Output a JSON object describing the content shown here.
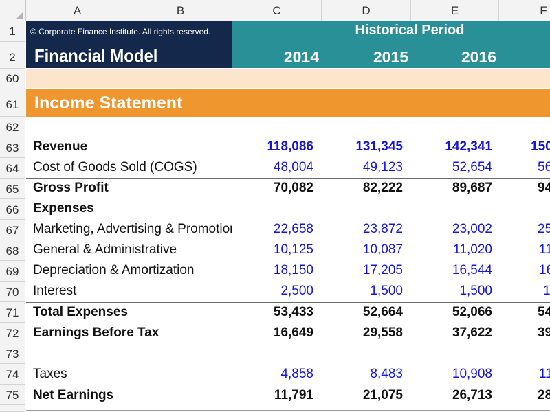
{
  "columns": [
    "A",
    "B",
    "C",
    "D",
    "E",
    "F"
  ],
  "rows_numbers": [
    "1",
    "2",
    "60",
    "61",
    "62",
    "63",
    "64",
    "65",
    "66",
    "67",
    "68",
    "69",
    "70",
    "71",
    "72",
    "73",
    "74",
    "75"
  ],
  "header": {
    "copyright": "© Corporate Finance Institute. All rights reserved.",
    "model_title": "Financial Model",
    "period_title": "Historical Period",
    "years": [
      "2014",
      "2015",
      "2016"
    ]
  },
  "section": {
    "title": "Income Statement"
  },
  "lines": [
    {
      "row": "63",
      "label": "Revenue",
      "bold": true,
      "style": "blue-bold",
      "values": [
        "118,086",
        "131,345",
        "142,341"
      ],
      "partial": "150"
    },
    {
      "row": "64",
      "label": "Cost of Goods Sold (COGS)",
      "bold": false,
      "style": "blue",
      "values": [
        "48,004",
        "49,123",
        "52,654"
      ],
      "partial": "56"
    },
    {
      "row": "65",
      "label": "Gross Profit",
      "bold": true,
      "style": "black",
      "values": [
        "70,082",
        "82,222",
        "89,687"
      ],
      "partial": "94"
    },
    {
      "row": "66",
      "label": "Expenses",
      "bold": true,
      "style": "none",
      "values": [],
      "partial": ""
    },
    {
      "row": "67",
      "label": "Marketing, Advertising & Promotion",
      "bold": false,
      "style": "blue",
      "values": [
        "22,658",
        "23,872",
        "23,002"
      ],
      "partial": "25"
    },
    {
      "row": "68",
      "label": "General & Administrative",
      "bold": false,
      "style": "blue",
      "values": [
        "10,125",
        "10,087",
        "11,020"
      ],
      "partial": "11"
    },
    {
      "row": "69",
      "label": "Depreciation & Amortization",
      "bold": false,
      "style": "blue",
      "values": [
        "18,150",
        "17,205",
        "16,544"
      ],
      "partial": "16"
    },
    {
      "row": "70",
      "label": "Interest",
      "bold": false,
      "style": "blue",
      "values": [
        "2,500",
        "1,500",
        "1,500"
      ],
      "partial": "1"
    },
    {
      "row": "71",
      "label": "Total Expenses",
      "bold": true,
      "style": "black",
      "values": [
        "53,433",
        "52,664",
        "52,066"
      ],
      "partial": "54"
    },
    {
      "row": "72",
      "label": "Earnings Before Tax",
      "bold": true,
      "style": "black",
      "values": [
        "16,649",
        "29,558",
        "37,622"
      ],
      "partial": "39"
    },
    {
      "row": "73",
      "label": "",
      "bold": false,
      "style": "none",
      "values": [],
      "partial": ""
    },
    {
      "row": "74",
      "label": "Taxes",
      "bold": false,
      "style": "blue",
      "values": [
        "4,858",
        "8,483",
        "10,908"
      ],
      "partial": "11"
    },
    {
      "row": "75",
      "label": "Net Earnings",
      "bold": true,
      "style": "black",
      "values": [
        "11,791",
        "21,075",
        "26,713"
      ],
      "partial": "28"
    }
  ],
  "colors": {
    "navy": "#13284b",
    "teal": "#2a9097",
    "orange": "#f0962f",
    "orange_light": "#fbe5cd",
    "input_blue": "#1515e0"
  }
}
